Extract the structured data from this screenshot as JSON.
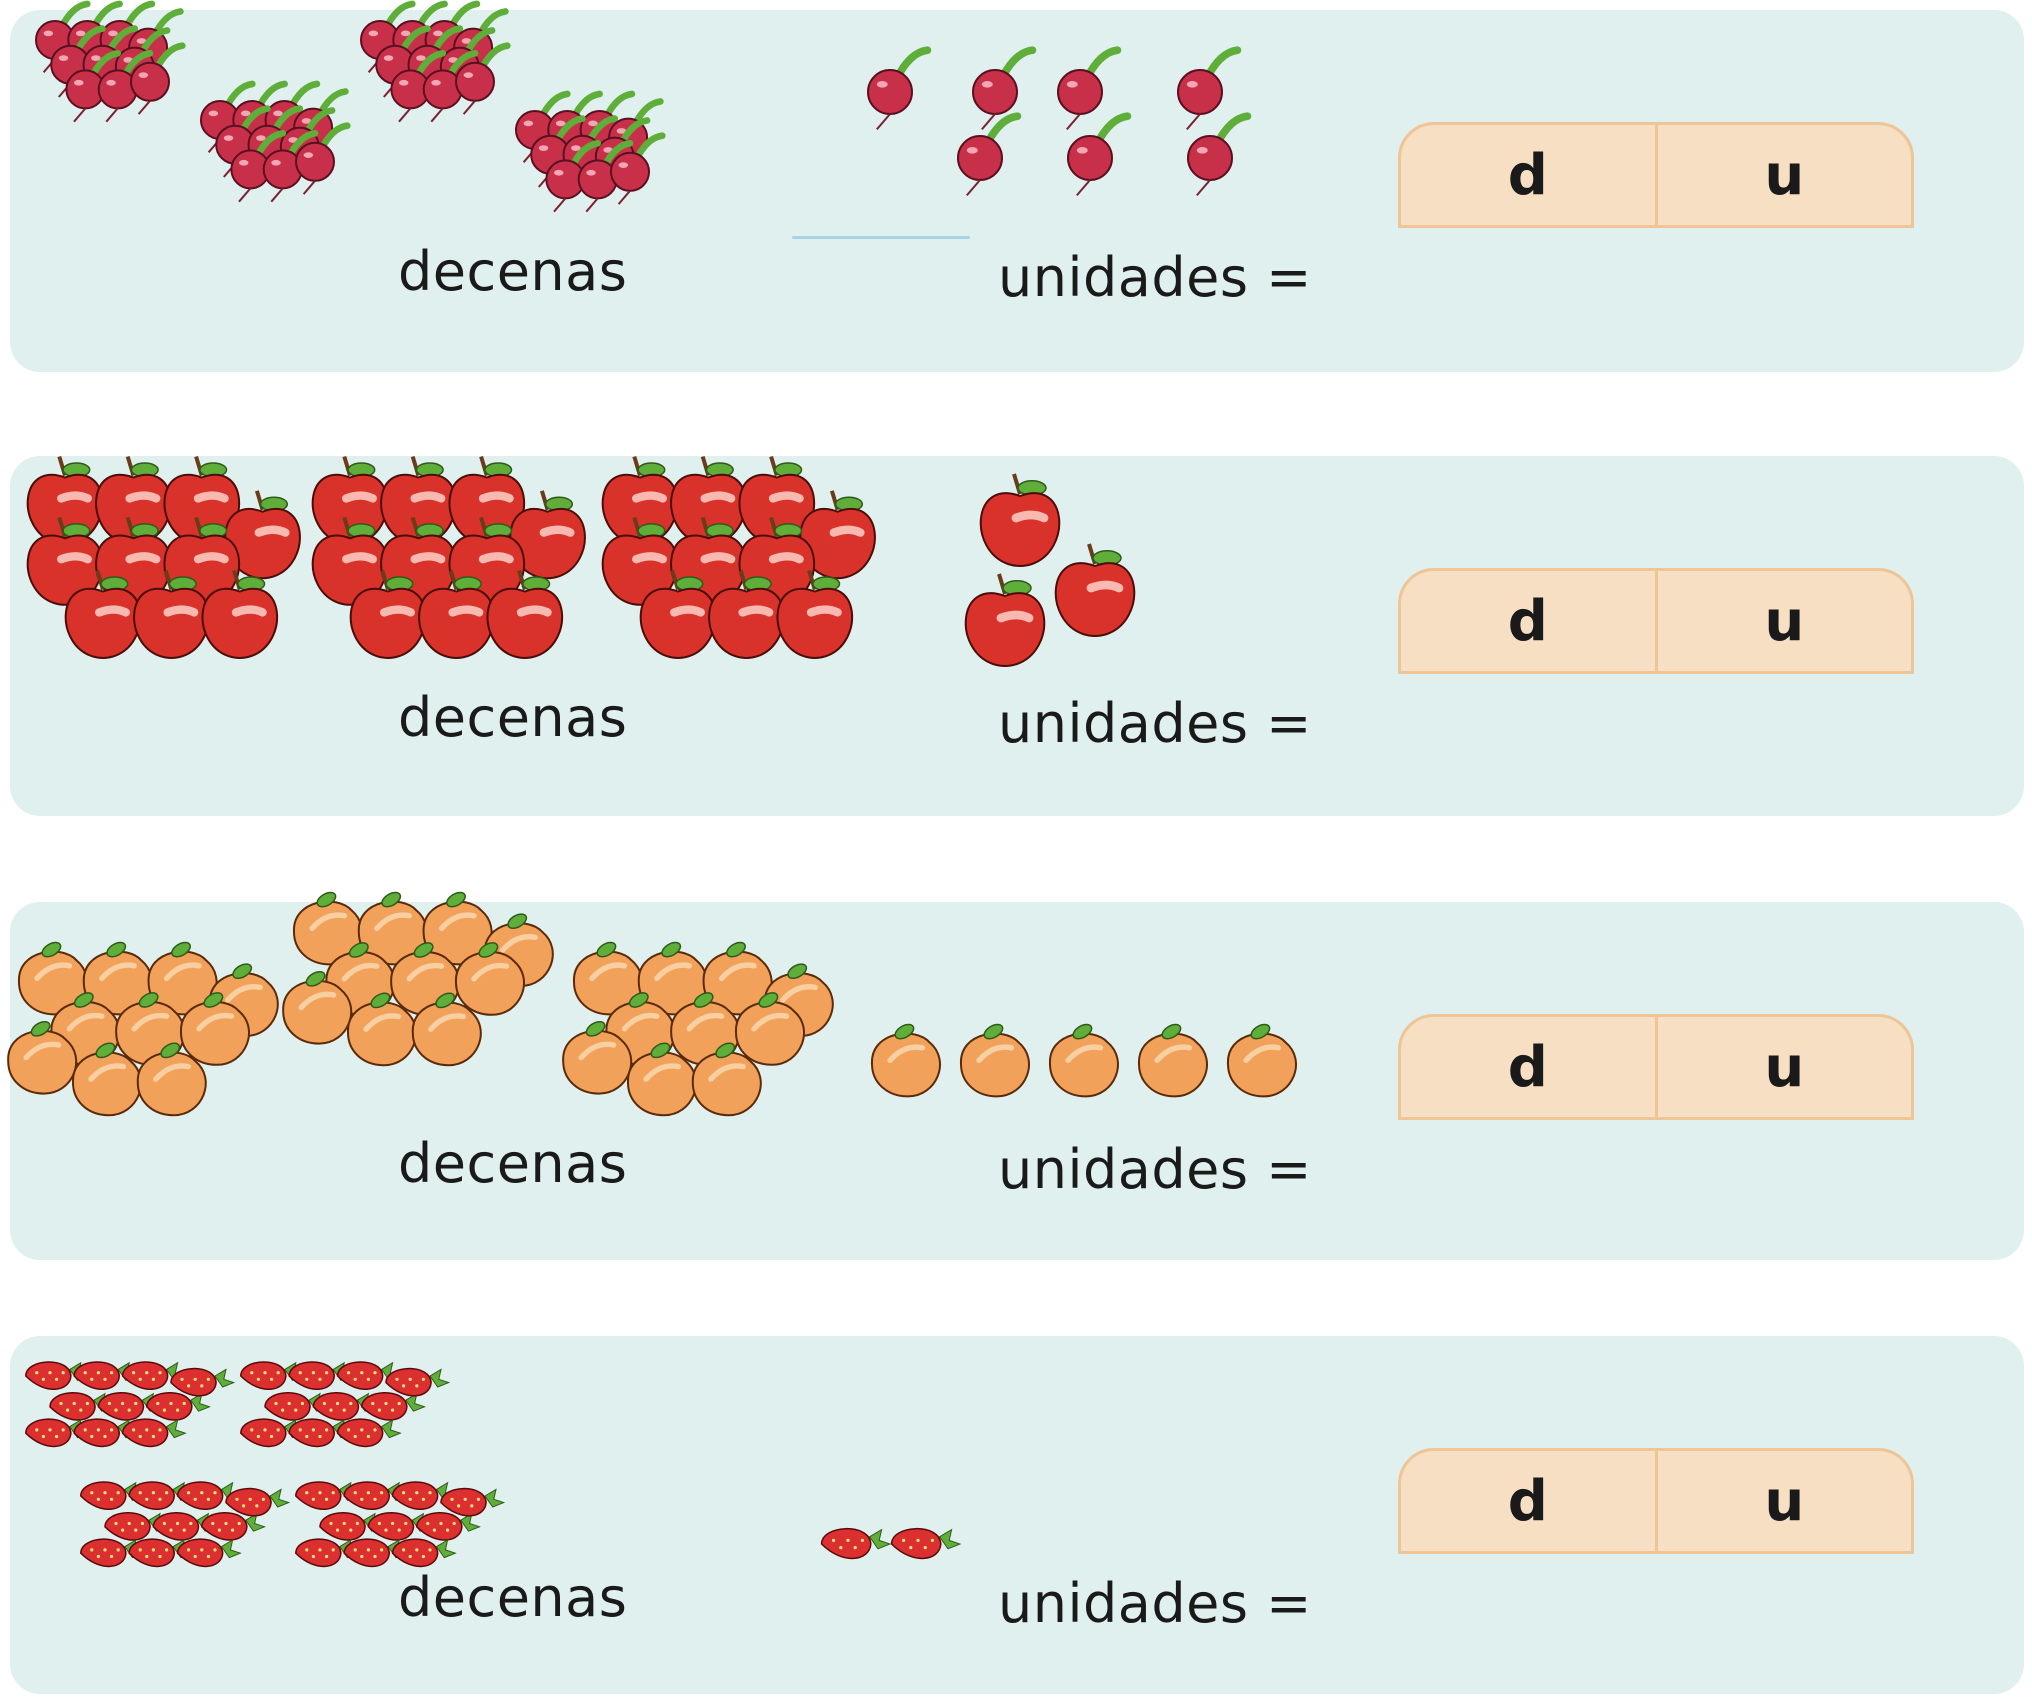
{
  "rows": [
    {
      "fruit": "radishes",
      "tens_groups": 4,
      "units": 7,
      "tens_label": "decenas",
      "units_label": "unidades =",
      "tens_col": "d",
      "units_col": "u"
    },
    {
      "fruit": "apples",
      "tens_groups": 3,
      "units": 3,
      "tens_label": "decenas",
      "units_label": "unidades =",
      "tens_col": "d",
      "units_col": "u"
    },
    {
      "fruit": "peaches",
      "tens_groups": 3,
      "units": 5,
      "tens_label": "decenas",
      "units_label": "unidades =",
      "tens_col": "d",
      "units_col": "u"
    },
    {
      "fruit": "strawberries",
      "tens_groups": 4,
      "units": 2,
      "tens_label": "decenas",
      "units_label": "unidades =",
      "tens_col": "d",
      "units_col": "u"
    }
  ],
  "colors": {
    "panel": "#dff0ef",
    "box_fill": "#f7dfc4",
    "box_border": "#eec597",
    "radish": "#c8304a",
    "apple": "#d9322b",
    "peach": "#f2a15a",
    "strawberry": "#dc2f2f",
    "leaf": "#5fae3a"
  }
}
